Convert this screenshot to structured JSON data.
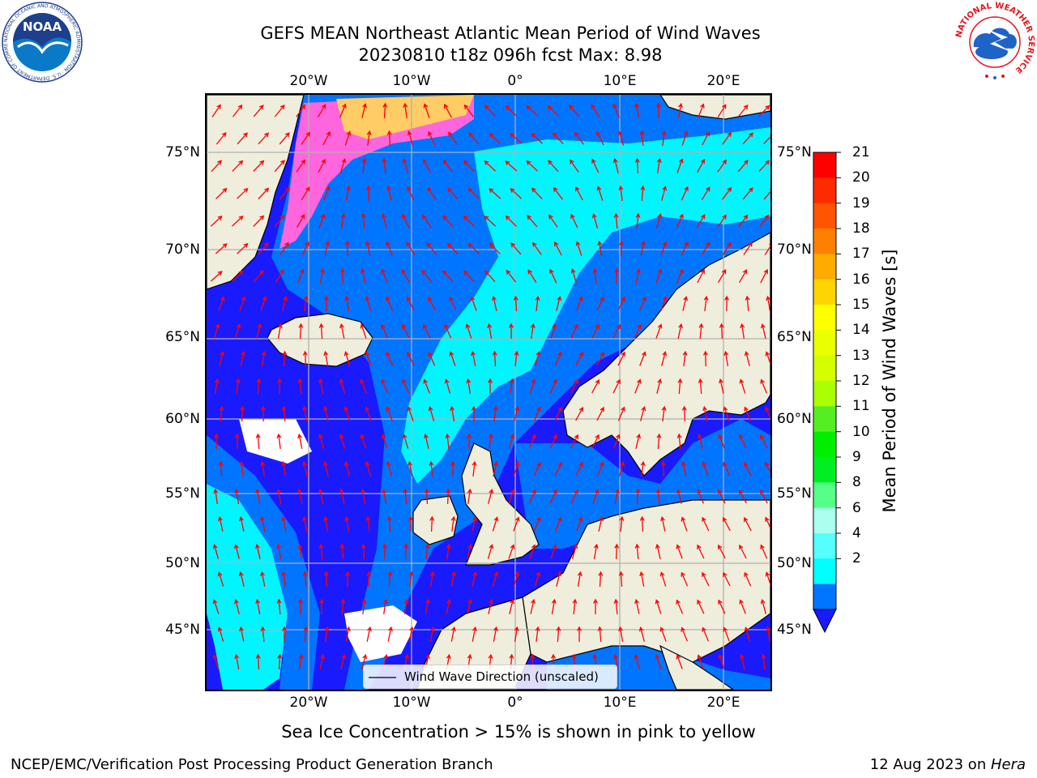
{
  "title": {
    "line1": "GEFS MEAN Northeast Atlantic Mean Period of Wind Waves",
    "line2": "20230810 t18z 096h fcst   Max: 8.98"
  },
  "map": {
    "lon_labels": [
      "20°W",
      "10°W",
      "0°",
      "10°E",
      "20°E"
    ],
    "lat_labels": [
      "75°N",
      "70°N",
      "65°N",
      "60°N",
      "55°N",
      "50°N",
      "45°N"
    ],
    "colors": {
      "land": "#efeedd",
      "period_2_4": "#0075ff",
      "period_4_6": "#00f5ff",
      "period_below_2": "#1a1aff",
      "sea_ice": "#ff66dd",
      "arrow": "#ff0000",
      "grid": "#b0b0b0"
    },
    "legend_label": "Wind Wave Direction (unscaled)"
  },
  "colorbar": {
    "label": "Mean Period of Wind Waves [s]",
    "ticks": [
      "21",
      "20",
      "19",
      "18",
      "17",
      "16",
      "15",
      "14",
      "13",
      "12",
      "11",
      "10",
      "9",
      "8",
      "6",
      "4",
      "2"
    ],
    "colors": [
      "#ff0000",
      "#ff2b00",
      "#ff5500",
      "#ff8000",
      "#ffab00",
      "#ffd500",
      "#ffff00",
      "#eaff00",
      "#d5ff00",
      "#aaff00",
      "#55ee22",
      "#00ee00",
      "#00ee22",
      "#55ff88",
      "#aaffee",
      "#55ffff",
      "#00ffff",
      "#0075ff"
    ],
    "extend_color": "#1a1aff"
  },
  "footer": {
    "note": "Sea Ice Concentration > 15% is shown in pink to yellow",
    "left": "NCEP/EMC/Verification Post Processing Product Generation Branch",
    "date": "12 Aug 2023 on ",
    "machine": "Hera"
  },
  "logos": {
    "noaa_text": "NOAA",
    "noaa_ring": "NATIONAL OCEANIC AND ATMOSPHERIC ADMINISTRATION · U.S. DEPARTMENT OF COMMERCE ·",
    "nws_ring": "NATIONAL WEATHER SERVICE"
  }
}
